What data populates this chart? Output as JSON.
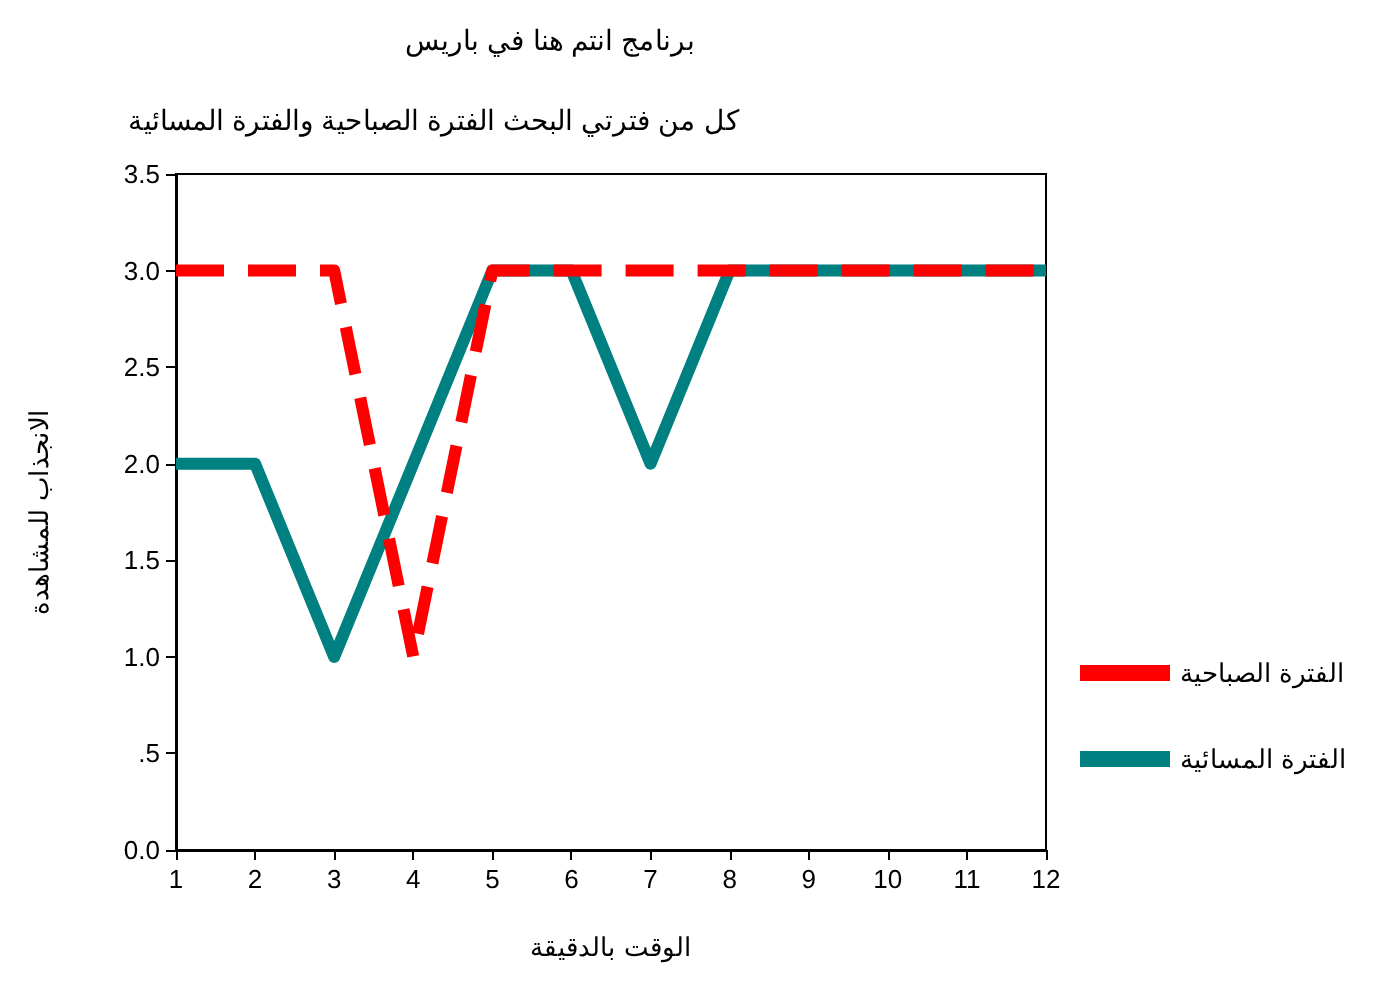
{
  "chart_data": {
    "type": "line",
    "title": "برنامج انتم هنا في باريس",
    "subtitle": "كل من فترتي البحث الفترة الصباحية والفترة المسائية",
    "xlabel": "الوقت بالدقيقة",
    "ylabel": "الانجذاب للمشاهدة",
    "x": [
      1,
      2,
      3,
      4,
      5,
      6,
      7,
      8,
      9,
      10,
      11,
      12
    ],
    "series": [
      {
        "name": "الفترة الصباحية",
        "color": "#ff0000",
        "line_style": "dashed",
        "values": [
          3,
          3,
          3,
          1,
          3,
          3,
          3,
          3,
          3,
          3,
          3,
          3
        ]
      },
      {
        "name": "الفترة المسائية",
        "color": "#008080",
        "line_style": "solid",
        "values": [
          2,
          2,
          1,
          2,
          3,
          3,
          2,
          3,
          3,
          3,
          3,
          3
        ]
      }
    ],
    "xlim": [
      1,
      12
    ],
    "xticks": [
      1,
      2,
      3,
      4,
      5,
      6,
      7,
      8,
      9,
      10,
      11,
      12
    ],
    "ylim": [
      0,
      3.5
    ],
    "yticks": [
      {
        "value": 0,
        "label": "0.0"
      },
      {
        "value": 0.5,
        "label": ".5"
      },
      {
        "value": 1,
        "label": "1.0"
      },
      {
        "value": 1.5,
        "label": "1.5"
      },
      {
        "value": 2,
        "label": "2.0"
      },
      {
        "value": 2.5,
        "label": "2.5"
      },
      {
        "value": 3,
        "label": "3.0"
      },
      {
        "value": 3.5,
        "label": "3.5"
      }
    ],
    "grid": false,
    "legend": "bottom right",
    "marker": "none"
  }
}
